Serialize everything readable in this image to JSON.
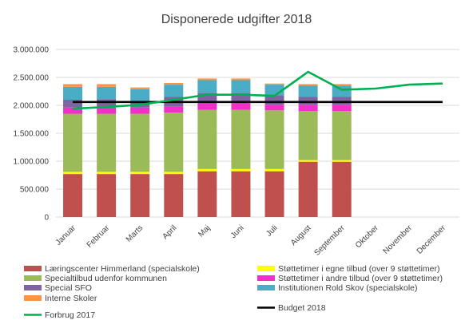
{
  "chart_data": {
    "type": "bar",
    "title": "Disponerede udgifter 2018",
    "categories": [
      "Januar",
      "Februar",
      "Marts",
      "April",
      "Maj",
      "Juni",
      "Juli",
      "August",
      "September",
      "Oktober",
      "November",
      "December"
    ],
    "ylim": [
      0,
      3000000
    ],
    "yticks": [
      0,
      500000,
      1000000,
      1500000,
      2000000,
      2500000,
      3000000
    ],
    "ytick_labels": [
      "0",
      "500.000",
      "1.000.000",
      "1.500.000",
      "2.000.000",
      "2.500.000",
      "3.000.000"
    ],
    "grid": true,
    "legend_position": "bottom",
    "stacked_series": [
      {
        "name": "Læringscenter Himmerland (specialskole)",
        "color": "#C0504D",
        "values": [
          770000,
          770000,
          770000,
          770000,
          820000,
          820000,
          820000,
          990000,
          990000
        ]
      },
      {
        "name": "Støttetimer i egne tilbud (over 9 støttetimer)",
        "color": "#FFFF00",
        "values": [
          40000,
          40000,
          40000,
          40000,
          40000,
          40000,
          40000,
          30000,
          30000
        ]
      },
      {
        "name": "Specialtilbud udenfor kommunen",
        "color": "#9BBB59",
        "values": [
          1040000,
          1040000,
          1040000,
          1060000,
          1060000,
          1060000,
          1050000,
          880000,
          880000
        ]
      },
      {
        "name": "Støttetimer i andre tilbud (over 9 støttetimer)",
        "color": "#F030C8",
        "values": [
          110000,
          110000,
          110000,
          110000,
          120000,
          120000,
          100000,
          110000,
          110000
        ]
      },
      {
        "name": "Special SFO",
        "color": "#8064A2",
        "values": [
          140000,
          150000,
          100000,
          170000,
          180000,
          180000,
          170000,
          140000,
          140000
        ]
      },
      {
        "name": "Institutionen Rold Skov (specialskole)",
        "color": "#4BACC6",
        "values": [
          230000,
          220000,
          230000,
          220000,
          230000,
          230000,
          190000,
          200000,
          200000
        ]
      },
      {
        "name": "Interne Skoler",
        "color": "#F79646",
        "values": [
          50000,
          50000,
          30000,
          30000,
          30000,
          30000,
          20000,
          30000,
          30000
        ]
      }
    ],
    "line_series": [
      {
        "name": "Budget 2018",
        "color": "#000000",
        "values": [
          2060000,
          2060000,
          2060000,
          2060000,
          2060000,
          2060000,
          2060000,
          2060000,
          2060000,
          2060000,
          2060000,
          2060000
        ]
      },
      {
        "name": "Forbrug 2017",
        "color": "#00B050",
        "values": [
          1940000,
          1970000,
          2010000,
          2100000,
          2190000,
          2190000,
          2170000,
          2600000,
          2280000,
          2300000,
          2370000,
          2390000
        ]
      }
    ]
  }
}
